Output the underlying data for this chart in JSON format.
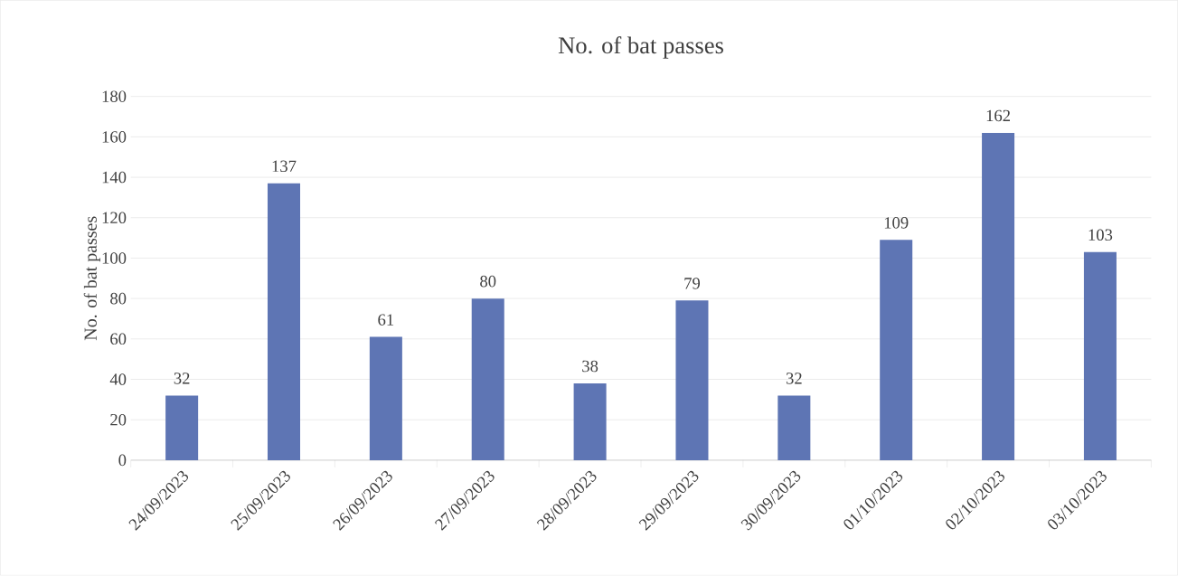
{
  "chart_data": {
    "type": "bar",
    "title": "No. of bat passes",
    "ylabel": "No. of bat passes",
    "categories": [
      "24/09/2023",
      "25/09/2023",
      "26/09/2023",
      "27/09/2023",
      "28/09/2023",
      "29/09/2023",
      "30/09/2023",
      "01/10/2023",
      "02/10/2023",
      "03/10/2023"
    ],
    "values": [
      32,
      137,
      61,
      80,
      38,
      79,
      32,
      109,
      162,
      103
    ],
    "color": "#5e75b4",
    "ylim": [
      0,
      180
    ],
    "yticks": [
      0,
      20,
      40,
      60,
      80,
      100,
      120,
      140,
      160,
      180
    ],
    "grid": "y",
    "data_labels": true
  }
}
